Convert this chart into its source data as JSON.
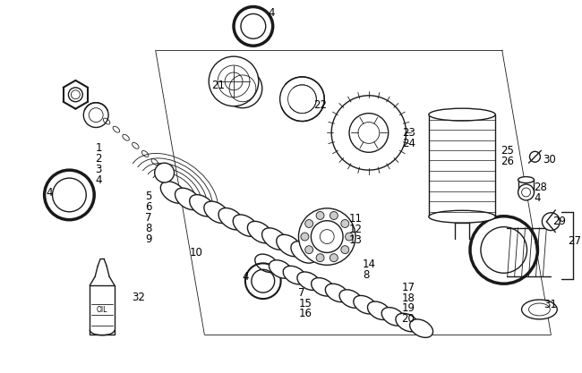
{
  "bg_color": "#ffffff",
  "line_color": "#1a1a1a",
  "fig_width": 6.5,
  "fig_height": 4.17,
  "dpi": 100
}
